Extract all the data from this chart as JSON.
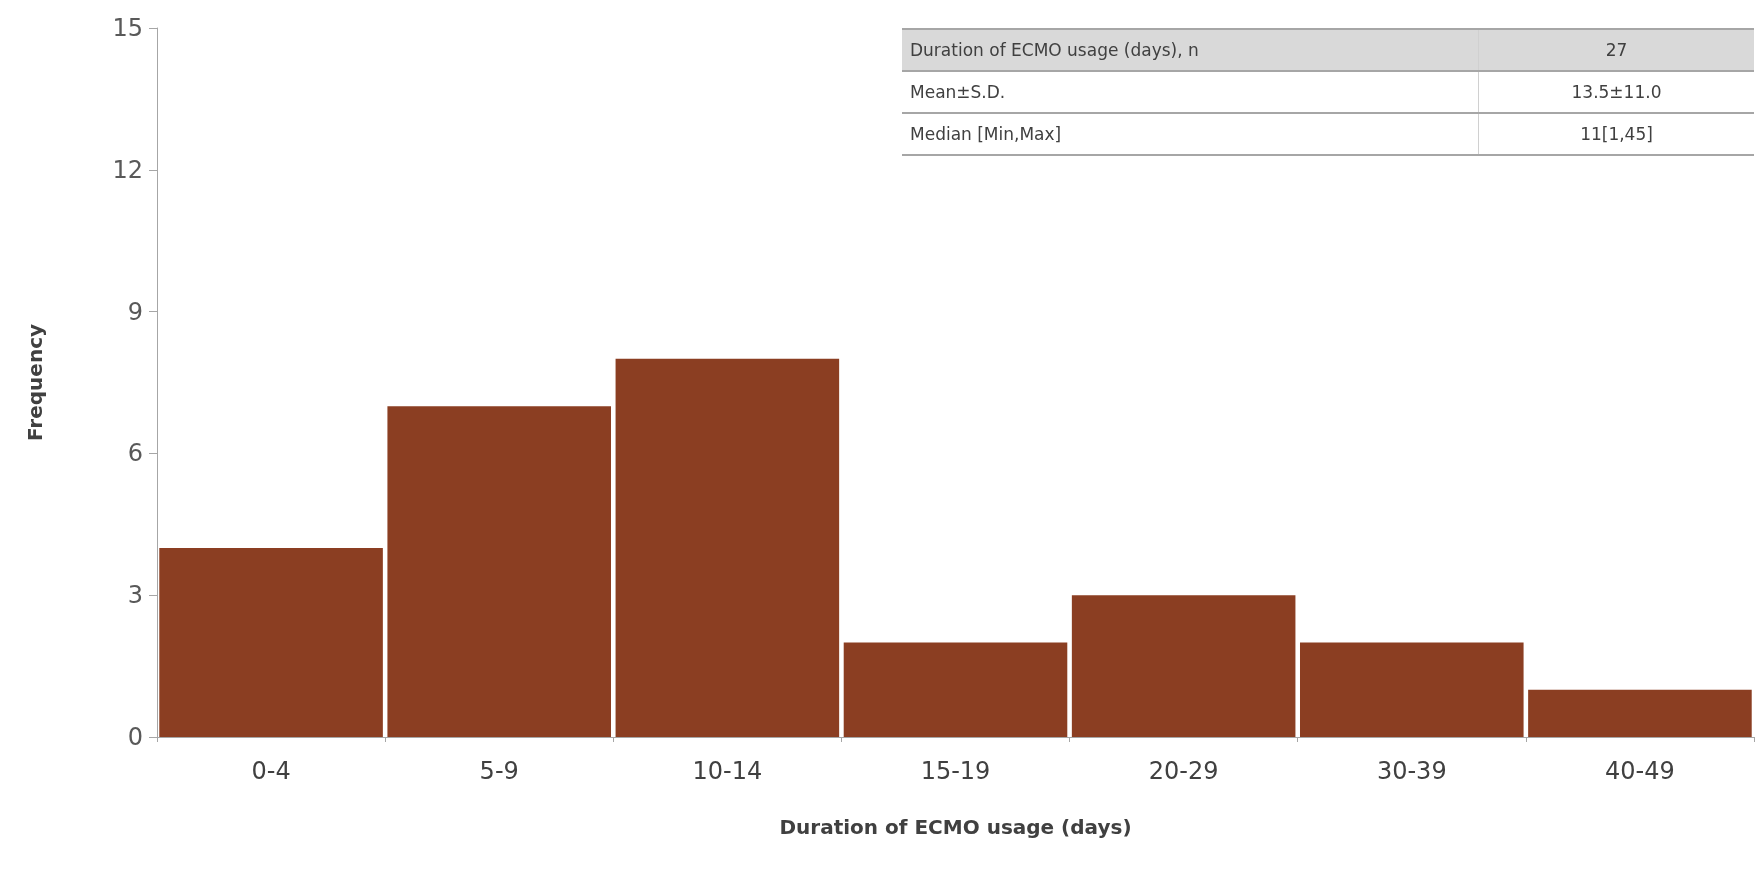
{
  "chart_data": {
    "type": "bar",
    "xlabel": "Duration of ECMO usage (days)",
    "ylabel": "Frequency",
    "categories": [
      "0-4",
      "5-9",
      "10-14",
      "15-19",
      "20-29",
      "30-39",
      "40-49"
    ],
    "values": [
      4,
      7,
      8,
      2,
      3,
      2,
      1
    ],
    "color": "#8b3e22",
    "ylim": [
      0,
      15
    ],
    "yticks": [
      0,
      3,
      6,
      9,
      12,
      15
    ],
    "grid": false,
    "annotations": [
      "Duration of ECMO usage (days), n",
      "27",
      "Mean±S.D.",
      "13.5±11.0",
      "Median [Min,Max]",
      "11[1,45]"
    ]
  }
}
